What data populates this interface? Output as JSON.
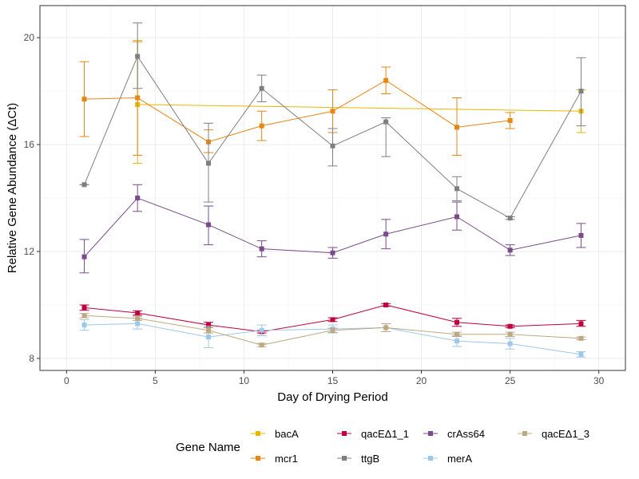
{
  "chart_data": {
    "type": "line",
    "xlabel": "Day of Drying Period",
    "ylabel": "Relative Gene Abundance (ΔCt)",
    "xlim": [
      -1.5,
      31.5
    ],
    "ylim": [
      7.55,
      21.2
    ],
    "xticks": [
      0,
      5,
      10,
      15,
      20,
      25,
      30
    ],
    "yticks": [
      8,
      12,
      16,
      20
    ],
    "grid": true,
    "legend": {
      "title": "Gene Name",
      "position": "bottom",
      "order": [
        "bacA",
        "mcr1",
        "qacEΔ1_1",
        "ttgB",
        "crAss64",
        "merA",
        "qacEΔ1_3"
      ]
    },
    "series": [
      {
        "name": "bacA",
        "color": "#E7B800",
        "points": [
          {
            "x": 4,
            "y": 17.5,
            "lo": 15.3,
            "hi": 19.9
          },
          {
            "x": 29,
            "y": 17.25,
            "lo": 16.45,
            "hi": 18.05
          }
        ]
      },
      {
        "name": "mcr1",
        "color": "#E68613",
        "points": [
          {
            "x": 1,
            "y": 17.7,
            "lo": 16.3,
            "hi": 19.1
          },
          {
            "x": 4,
            "y": 17.75,
            "lo": 15.6,
            "hi": 19.85
          },
          {
            "x": 8,
            "y": 16.1,
            "lo": 15.7,
            "hi": 16.55
          },
          {
            "x": 11,
            "y": 16.7,
            "lo": 16.15,
            "hi": 17.25
          },
          {
            "x": 15,
            "y": 17.25,
            "lo": 16.45,
            "hi": 18.05
          },
          {
            "x": 18,
            "y": 18.4,
            "lo": 17.9,
            "hi": 18.9
          },
          {
            "x": 22,
            "y": 16.65,
            "lo": 15.6,
            "hi": 17.75
          },
          {
            "x": 25,
            "y": 16.9,
            "lo": 16.6,
            "hi": 17.2
          }
        ]
      },
      {
        "name": "ttgB",
        "color": "#7F7F7F",
        "points": [
          {
            "x": 1,
            "y": 14.5,
            "lo": 14.5,
            "hi": 14.5
          },
          {
            "x": 4,
            "y": 19.3,
            "lo": 18.1,
            "hi": 20.55
          },
          {
            "x": 8,
            "y": 15.3,
            "lo": 13.85,
            "hi": 16.8
          },
          {
            "x": 11,
            "y": 18.1,
            "lo": 17.6,
            "hi": 18.6
          },
          {
            "x": 15,
            "y": 15.95,
            "lo": 15.2,
            "hi": 16.6
          },
          {
            "x": 18,
            "y": 16.85,
            "lo": 15.55,
            "hi": 17.0
          },
          {
            "x": 22,
            "y": 14.35,
            "lo": 13.9,
            "hi": 14.8
          },
          {
            "x": 25,
            "y": 13.25,
            "lo": 13.2,
            "hi": 13.3
          },
          {
            "x": 29,
            "y": 18.0,
            "lo": 16.7,
            "hi": 19.25
          }
        ]
      },
      {
        "name": "crAss64",
        "color": "#7B4A8C",
        "points": [
          {
            "x": 1,
            "y": 11.8,
            "lo": 11.2,
            "hi": 12.45
          },
          {
            "x": 4,
            "y": 14.0,
            "lo": 13.5,
            "hi": 14.5
          },
          {
            "x": 8,
            "y": 13.0,
            "lo": 12.25,
            "hi": 13.7
          },
          {
            "x": 11,
            "y": 12.1,
            "lo": 11.8,
            "hi": 12.4
          },
          {
            "x": 15,
            "y": 11.95,
            "lo": 11.75,
            "hi": 12.15
          },
          {
            "x": 18,
            "y": 12.65,
            "lo": 12.1,
            "hi": 13.2
          },
          {
            "x": 22,
            "y": 13.3,
            "lo": 12.8,
            "hi": 13.85
          },
          {
            "x": 25,
            "y": 12.05,
            "lo": 11.85,
            "hi": 12.25
          },
          {
            "x": 29,
            "y": 12.6,
            "lo": 12.15,
            "hi": 13.05
          }
        ]
      },
      {
        "name": "qacEΔ1_1",
        "color": "#C2003D",
        "points": [
          {
            "x": 1,
            "y": 9.9,
            "lo": 9.8,
            "hi": 10.0
          },
          {
            "x": 4,
            "y": 9.7,
            "lo": 9.62,
            "hi": 9.78
          },
          {
            "x": 8,
            "y": 9.25,
            "lo": 9.15,
            "hi": 9.35
          },
          {
            "x": 11,
            "y": 9.0,
            "lo": 8.95,
            "hi": 9.05
          },
          {
            "x": 15,
            "y": 9.45,
            "lo": 9.38,
            "hi": 9.52
          },
          {
            "x": 18,
            "y": 10.0,
            "lo": 9.95,
            "hi": 10.05
          },
          {
            "x": 22,
            "y": 9.35,
            "lo": 9.2,
            "hi": 9.5
          },
          {
            "x": 25,
            "y": 9.2,
            "lo": 9.15,
            "hi": 9.25
          },
          {
            "x": 29,
            "y": 9.3,
            "lo": 9.2,
            "hi": 9.42
          }
        ]
      },
      {
        "name": "merA",
        "color": "#9DC8EA",
        "points": [
          {
            "x": 1,
            "y": 9.25,
            "lo": 9.05,
            "hi": 9.45
          },
          {
            "x": 4,
            "y": 9.3,
            "lo": 9.1,
            "hi": 9.5
          },
          {
            "x": 8,
            "y": 8.8,
            "lo": 8.4,
            "hi": 9.2
          },
          {
            "x": 11,
            "y": 9.05,
            "lo": 8.85,
            "hi": 9.25
          },
          {
            "x": 15,
            "y": 9.1,
            "lo": 8.95,
            "hi": 9.25
          },
          {
            "x": 18,
            "y": 9.15,
            "lo": 9.0,
            "hi": 9.3
          },
          {
            "x": 22,
            "y": 8.65,
            "lo": 8.45,
            "hi": 8.85
          },
          {
            "x": 25,
            "y": 8.55,
            "lo": 8.35,
            "hi": 8.75
          },
          {
            "x": 29,
            "y": 8.15,
            "lo": 8.05,
            "hi": 8.25
          }
        ]
      },
      {
        "name": "qacEΔ1_3",
        "color": "#BDA882",
        "points": [
          {
            "x": 1,
            "y": 9.6,
            "lo": 9.52,
            "hi": 9.68
          },
          {
            "x": 4,
            "y": 9.5,
            "lo": 9.42,
            "hi": 9.58
          },
          {
            "x": 8,
            "y": 9.05,
            "lo": 8.95,
            "hi": 9.15
          },
          {
            "x": 11,
            "y": 8.5,
            "lo": 8.44,
            "hi": 8.56
          },
          {
            "x": 15,
            "y": 9.05,
            "lo": 8.97,
            "hi": 9.13
          },
          {
            "x": 18,
            "y": 9.15,
            "lo": 9.0,
            "hi": 9.3
          },
          {
            "x": 22,
            "y": 8.9,
            "lo": 8.82,
            "hi": 8.98
          },
          {
            "x": 25,
            "y": 8.9,
            "lo": 8.82,
            "hi": 8.98
          },
          {
            "x": 29,
            "y": 8.75,
            "lo": 8.7,
            "hi": 8.8
          }
        ]
      }
    ]
  }
}
